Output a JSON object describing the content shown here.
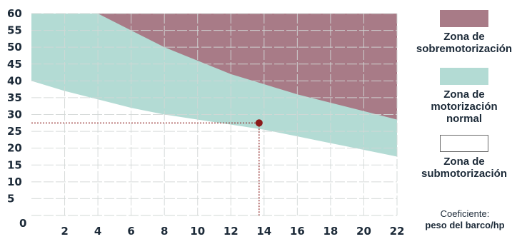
{
  "chart_data": {
    "type": "area",
    "xlabel": "Coeficiente:",
    "xlabel_line2": "peso del barco/hp",
    "x_ticks": [
      2,
      4,
      6,
      8,
      10,
      12,
      14,
      16,
      18,
      20,
      22
    ],
    "y_ticks": [
      5,
      10,
      15,
      20,
      25,
      30,
      35,
      40,
      45,
      50,
      55,
      60
    ],
    "origin_label": "0",
    "xlim": [
      0,
      22
    ],
    "ylim": [
      0,
      60
    ],
    "grid": true,
    "zones": [
      {
        "name": "Zona de sobremotorización",
        "color": "#a87b87"
      },
      {
        "name": "Zona de motorización normal",
        "color": "#b3dbd4"
      },
      {
        "name": "Zona de submotorización",
        "color": "#ffffff"
      }
    ],
    "boundaries": {
      "upper": {
        "x": [
          4,
          6,
          8,
          10,
          12,
          14,
          16,
          18,
          20,
          22
        ],
        "y": [
          60,
          55,
          50,
          46,
          42,
          39,
          36,
          33.5,
          31,
          28.5
        ]
      },
      "lower": {
        "x": [
          0,
          2,
          4,
          6,
          8,
          10,
          12,
          14,
          16,
          18,
          20,
          22
        ],
        "y": [
          40,
          37,
          34.5,
          32,
          30,
          28.5,
          27,
          25.5,
          23.5,
          21.5,
          19.5,
          17.5
        ]
      }
    },
    "marker": {
      "x": 13.7,
      "y": 27.5,
      "color": "#8b1a1a"
    }
  },
  "legend": {
    "items": [
      {
        "label": "Zona de\nsobremotorización",
        "color": "#a87b87"
      },
      {
        "label": "Zona de\nmotorización\nnormal",
        "color": "#b3dbd4"
      },
      {
        "label": "Zona de\nsubmotorización",
        "color": "#ffffff"
      }
    ]
  }
}
